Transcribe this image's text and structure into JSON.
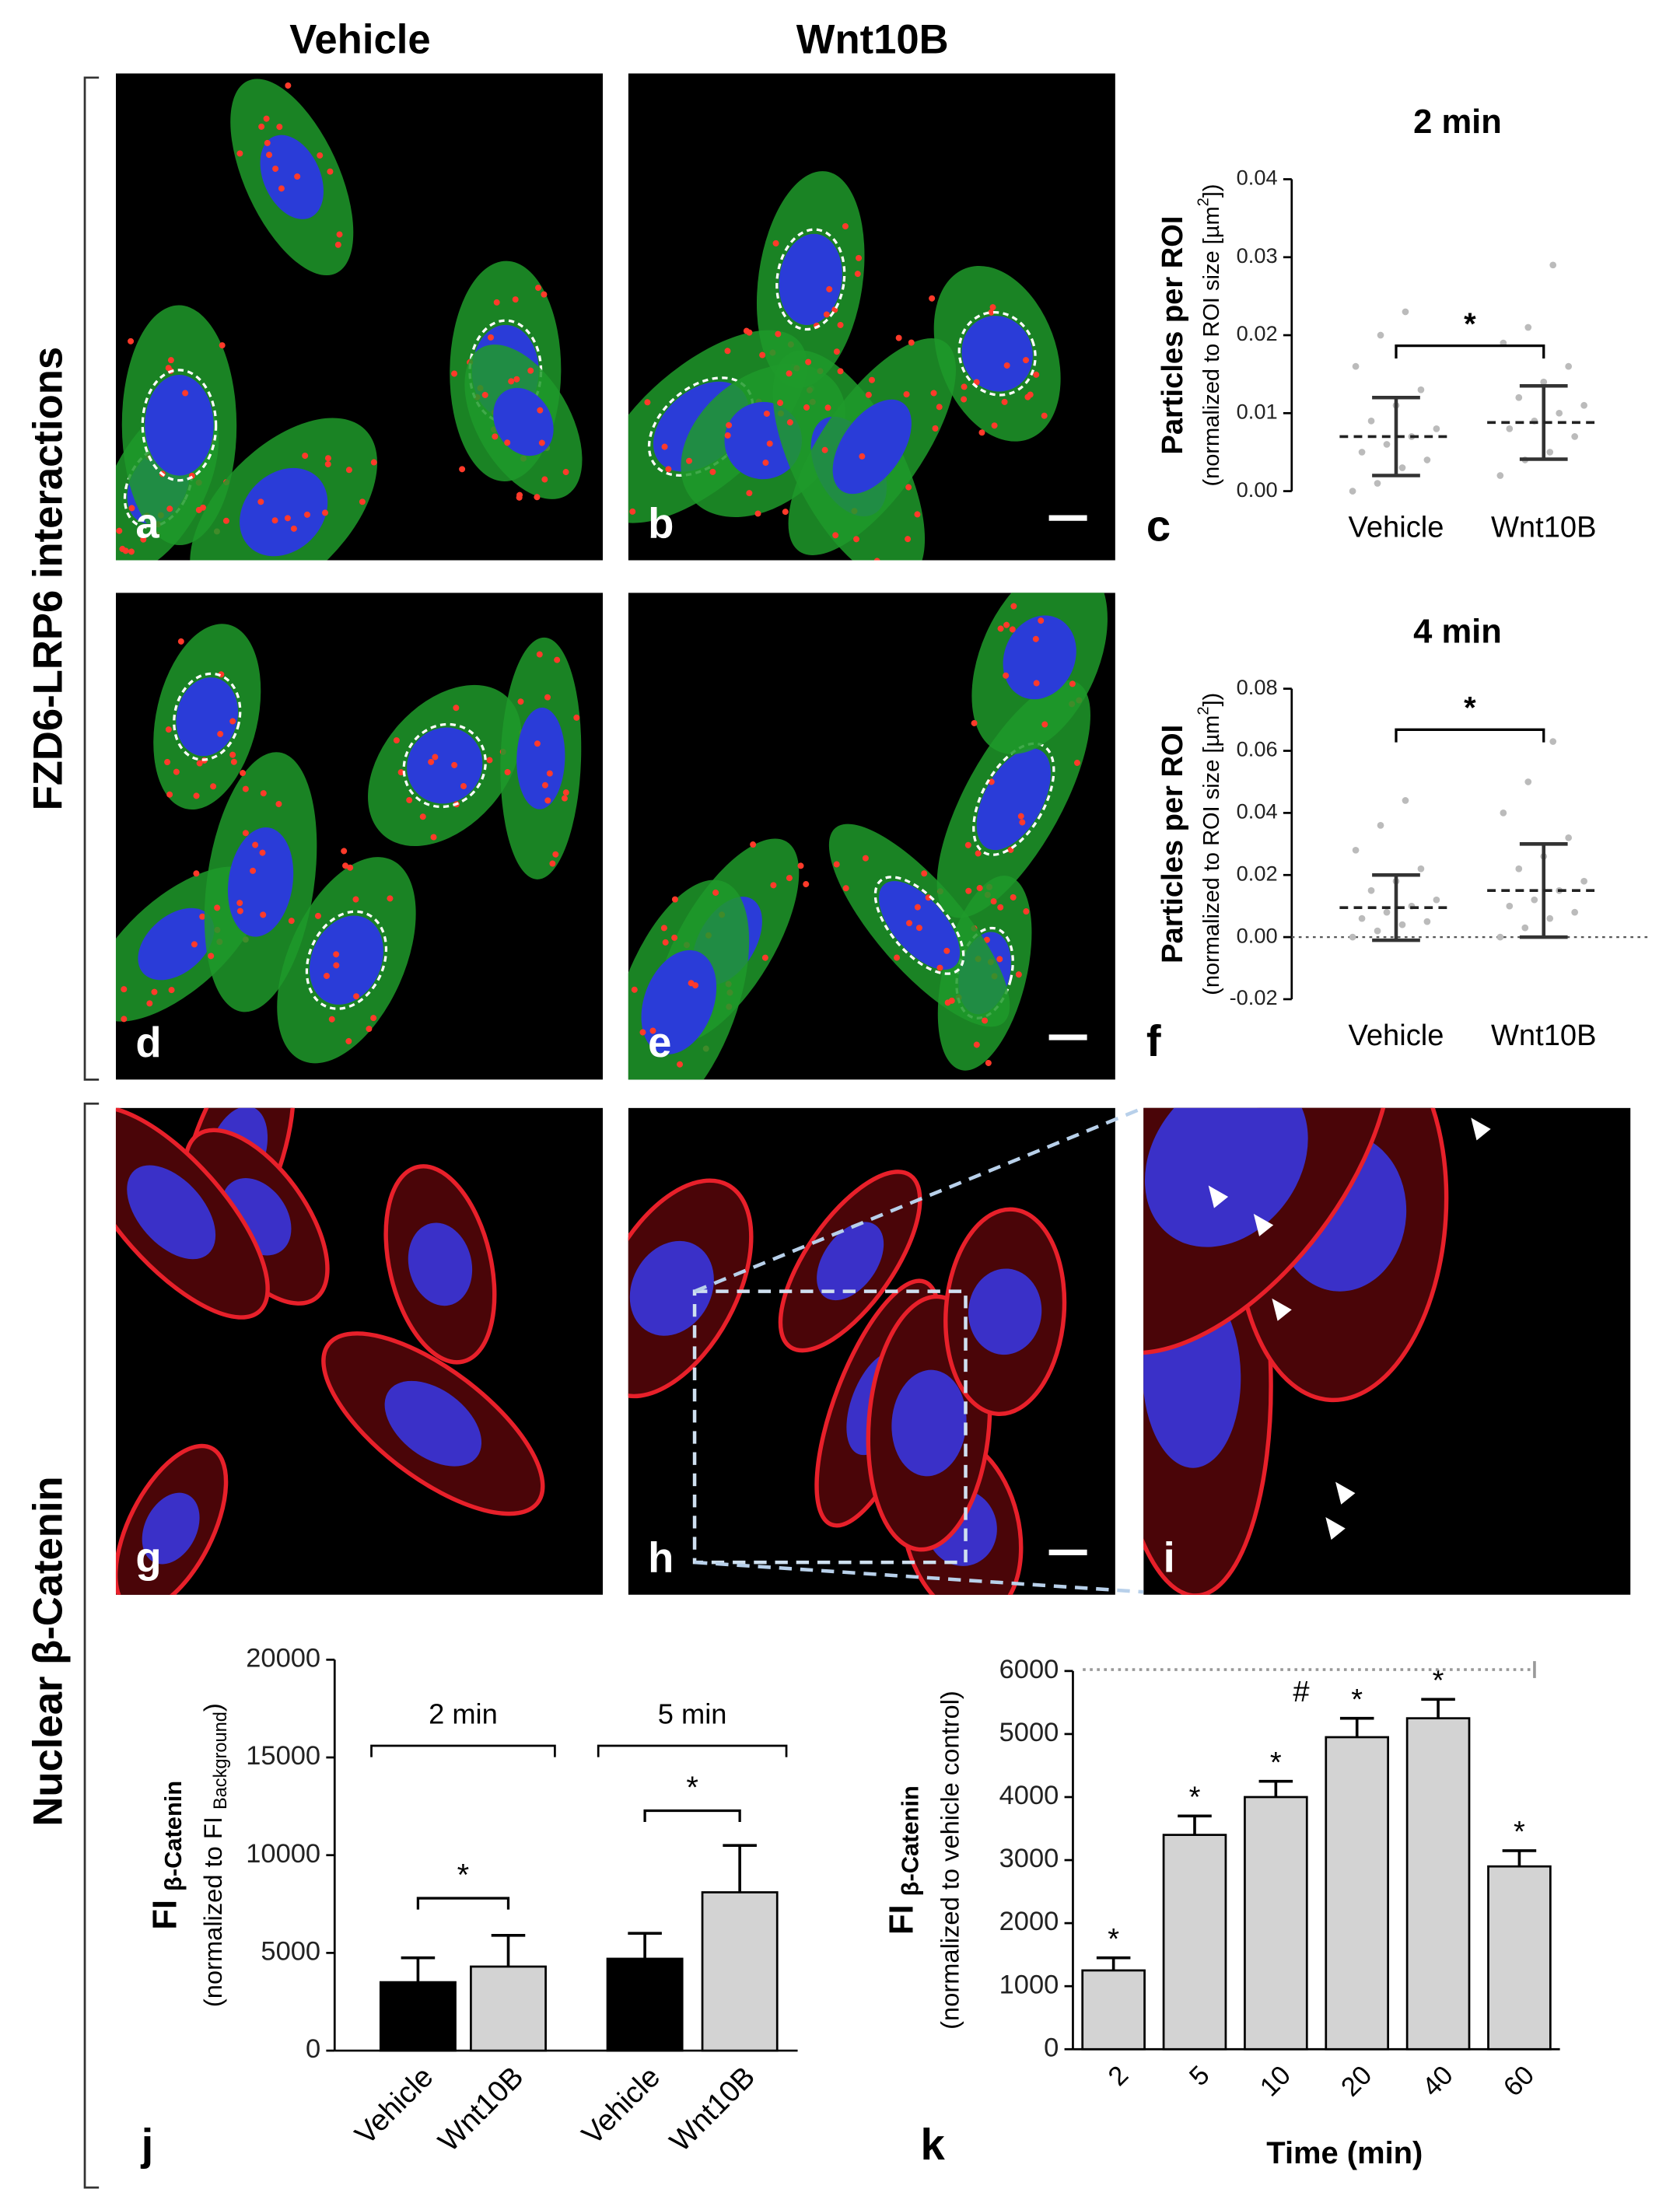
{
  "figure": {
    "column_headers": [
      "Vehicle",
      "Wnt10B"
    ],
    "row_labels": [
      "FZD6-LRP6 interactions",
      "Nuclear β-Catenin"
    ],
    "image_panels": [
      "a",
      "b",
      "d",
      "e",
      "g",
      "h",
      "i"
    ]
  },
  "chart_data": [
    {
      "type": "scatter",
      "panel": "c",
      "title": "2 min",
      "ylabel": "Particles per ROI",
      "ylabel_note": [
        "(normalized to ROI size [µm",
        "2",
        "])"
      ],
      "categories": [
        "Vehicle",
        "Wnt10B"
      ],
      "color": "#bbbbbb",
      "points": [
        [
          0.0,
          0.001,
          0.003,
          0.004,
          0.005,
          0.006,
          0.007,
          0.008,
          0.009,
          0.011,
          0.013,
          0.016,
          0.02,
          0.023
        ],
        [
          0.002,
          0.004,
          0.005,
          0.007,
          0.008,
          0.009,
          0.01,
          0.011,
          0.012,
          0.014,
          0.016,
          0.019,
          0.021,
          0.029
        ]
      ],
      "means": [
        0.007,
        0.0088
      ],
      "sd": [
        0.005,
        0.0047
      ],
      "annotation": "*",
      "ylim": [
        0,
        0.04
      ],
      "yticks": [
        {
          "value": 0,
          "label": "0.00"
        },
        {
          "value": 0.01,
          "label": "0.01"
        },
        {
          "value": 0.02,
          "label": "0.02"
        },
        {
          "value": 0.03,
          "label": "0.03"
        },
        {
          "value": 0.04,
          "label": "0.04"
        }
      ],
      "zero_line": false
    },
    {
      "type": "scatter",
      "panel": "f",
      "title": "4 min",
      "ylabel": "Particles per ROI",
      "ylabel_note": [
        "(normalized to ROI size [µm",
        "2",
        "])"
      ],
      "categories": [
        "Vehicle",
        "Wnt10B"
      ],
      "color": "#bbbbbb",
      "points": [
        [
          0.0,
          0.002,
          0.004,
          0.005,
          0.006,
          0.008,
          0.01,
          0.012,
          0.015,
          0.018,
          0.022,
          0.028,
          0.036,
          0.044
        ],
        [
          0.0,
          0.003,
          0.006,
          0.008,
          0.01,
          0.012,
          0.015,
          0.018,
          0.022,
          0.026,
          0.032,
          0.04,
          0.05,
          0.063
        ]
      ],
      "means": [
        0.0095,
        0.015
      ],
      "sd": [
        0.0105,
        0.015
      ],
      "annotation": "*",
      "ylim": [
        -0.02,
        0.08
      ],
      "yticks": [
        {
          "value": -0.02,
          "label": "-0.02"
        },
        {
          "value": 0,
          "label": "0.00"
        },
        {
          "value": 0.02,
          "label": "0.02"
        },
        {
          "value": 0.04,
          "label": "0.04"
        },
        {
          "value": 0.06,
          "label": "0.06"
        },
        {
          "value": 0.08,
          "label": "0.08"
        }
      ],
      "zero_line": true
    },
    {
      "type": "bar",
      "panel": "j",
      "ylabel": "FI",
      "ylabel_sub": "β-Catenin",
      "ylabel_note": [
        "(normalized to FI ",
        "Background",
        ")"
      ],
      "categories": [
        "Vehicle",
        "Wnt10B",
        "Vehicle",
        "Wnt10B"
      ],
      "groups": [
        "2 min",
        "5 min"
      ],
      "values": [
        3500,
        4300,
        4700,
        8100
      ],
      "errors": [
        1250,
        1600,
        1300,
        2400
      ],
      "colors": [
        "#000000",
        "#d3d3d3",
        "#000000",
        "#d3d3d3"
      ],
      "annotations": [
        "*",
        "*"
      ],
      "ylim": [
        0,
        20000
      ],
      "yticks": [
        0,
        5000,
        10000,
        15000,
        20000
      ]
    },
    {
      "type": "bar",
      "panel": "k",
      "ylabel": "FI",
      "ylabel_sub": "β-Catenin",
      "ylabel_note": [
        "(normalized to vehicle control)"
      ],
      "xlabel": "Time (min)",
      "categories": [
        "2",
        "5",
        "10",
        "20",
        "40",
        "60"
      ],
      "values": [
        1250,
        3400,
        4000,
        4950,
        5250,
        2900
      ],
      "errors": [
        200,
        300,
        250,
        300,
        300,
        250
      ],
      "color": "#d3d3d3",
      "annotations": [
        "*",
        "*",
        "*",
        "*",
        "*",
        "*"
      ],
      "extra_annotation": "#",
      "ylim": [
        0,
        6000
      ],
      "yticks": [
        0,
        1000,
        2000,
        3000,
        4000,
        5000,
        6000
      ]
    }
  ]
}
